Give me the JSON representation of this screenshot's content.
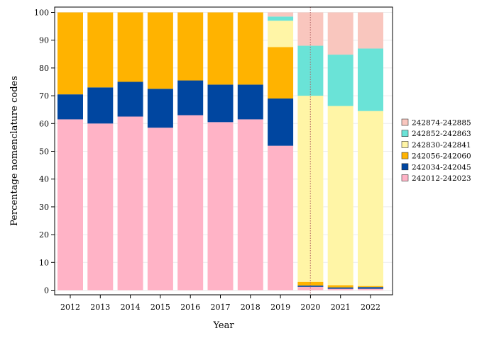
{
  "chart_data": {
    "type": "bar",
    "stacked": true,
    "xlabel": "Year",
    "ylabel": "Percentage nomenclature codes",
    "ylim": [
      0,
      100
    ],
    "yticks": [
      0,
      10,
      20,
      30,
      40,
      50,
      60,
      70,
      80,
      90,
      100
    ],
    "categories": [
      "2012",
      "2013",
      "2014",
      "2015",
      "2016",
      "2017",
      "2018",
      "2019",
      "2020",
      "2021",
      "2022"
    ],
    "series": [
      {
        "name": "242012-242023",
        "color": "#FFB3C6",
        "values": [
          61.5,
          60,
          62.5,
          58.5,
          63,
          60.5,
          61.5,
          52,
          1.2,
          0.5,
          0.5
        ]
      },
      {
        "name": "242034-242045",
        "color": "#0046A0",
        "values": [
          9,
          13,
          12.5,
          14,
          12.5,
          13.5,
          12.5,
          17,
          0.5,
          0.5,
          0.6
        ]
      },
      {
        "name": "242056-242060",
        "color": "#FFB300",
        "values": [
          29.5,
          27,
          25,
          27.5,
          24.5,
          26,
          26,
          18.5,
          1.3,
          0.8,
          0.4
        ]
      },
      {
        "name": "242830-242841",
        "color": "#FFF5A6",
        "values": [
          0,
          0,
          0,
          0,
          0,
          0,
          0,
          9.5,
          67,
          64.5,
          63
        ]
      },
      {
        "name": "242852-242863",
        "color": "#6AE3D7",
        "values": [
          0,
          0,
          0,
          0,
          0,
          0,
          0,
          1.5,
          18,
          18.5,
          22.5
        ]
      },
      {
        "name": "242874-242885",
        "color": "#F9C6BE",
        "values": [
          0,
          0,
          0,
          0,
          0,
          0,
          0,
          1.5,
          12,
          15.2,
          13
        ]
      }
    ],
    "reference_line": {
      "position": "between 2019 and 2020",
      "style": "dotted",
      "color": "#B06060"
    },
    "legend": {
      "placement": "right",
      "order": [
        "242874-242885",
        "242852-242863",
        "242830-242841",
        "242056-242060",
        "242034-242045",
        "242012-242023"
      ]
    },
    "grid": true
  }
}
